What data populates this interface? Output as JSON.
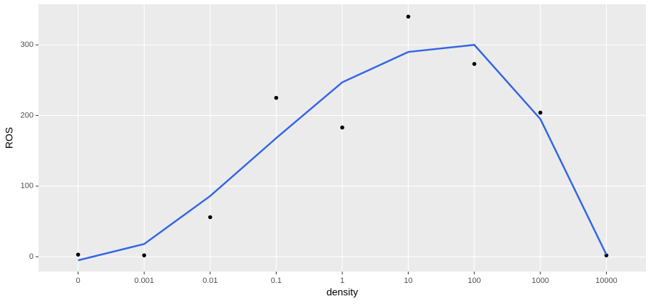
{
  "chart_data": {
    "type": "line",
    "x_label": "density",
    "y_label": "ROS",
    "categories": [
      "0",
      "0.001",
      "0.01",
      "0.1",
      "1",
      "10",
      "100",
      "1000",
      "10000"
    ],
    "series": [
      {
        "color": "#000000",
        "marker": "point",
        "values": [
          3,
          2,
          56,
          225,
          183,
          340,
          273,
          204,
          2
        ]
      },
      {
        "color": "#3366e6",
        "marker": "line",
        "values": [
          -5,
          18,
          86,
          168,
          247,
          290,
          300,
          195,
          3
        ]
      }
    ],
    "ylim": [
      -21,
      357.5
    ],
    "yticks": [
      0,
      100,
      200,
      300
    ],
    "grid": true
  }
}
